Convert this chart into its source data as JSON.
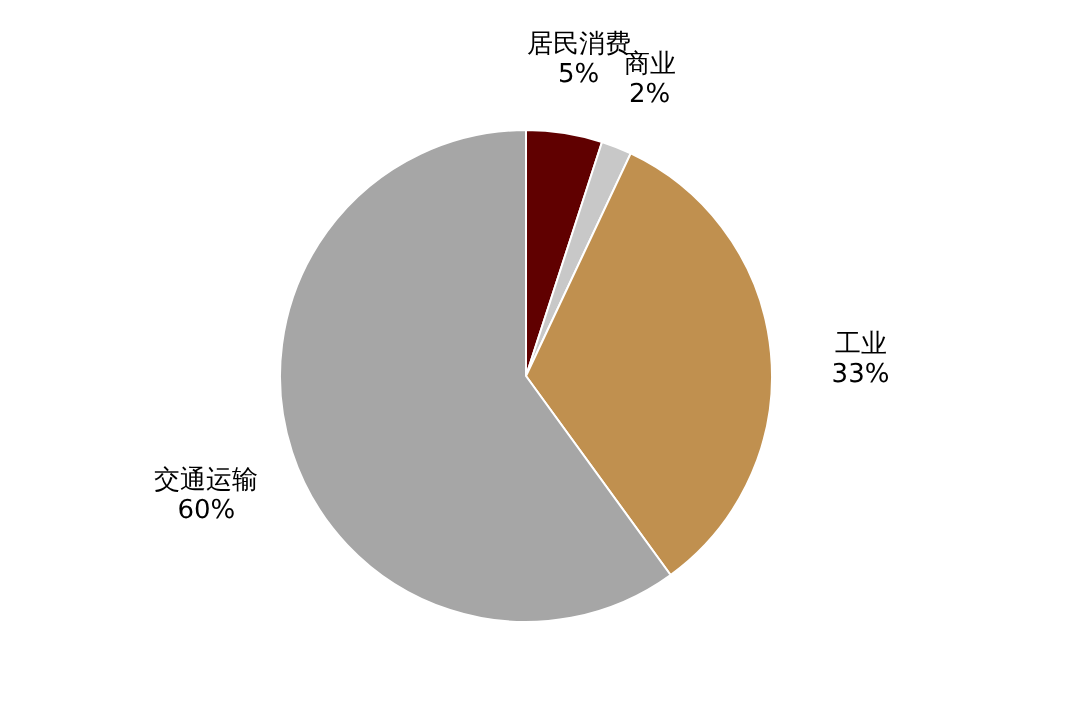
{
  "chart_data": {
    "type": "pie",
    "categories": [
      "居民消费",
      "商业",
      "工业",
      "交通运输"
    ],
    "values": [
      5,
      2,
      33,
      60
    ],
    "value_labels": [
      "5%",
      "2%",
      "33%",
      "60%"
    ],
    "colors": [
      "#600000",
      "#c8c8c8",
      "#c0904f",
      "#a6a6a6"
    ],
    "legend": false
  }
}
